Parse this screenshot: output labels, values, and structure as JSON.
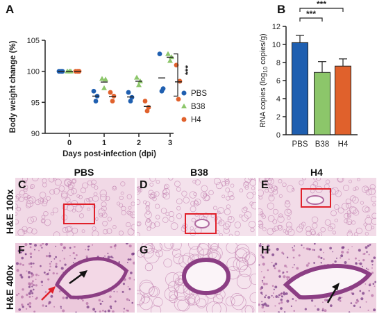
{
  "panels": {
    "a": "A",
    "b": "B",
    "c": "C",
    "d": "D",
    "e": "E",
    "f": "F",
    "g": "G",
    "h": "H"
  },
  "columns": [
    "PBS",
    "B38",
    "H4"
  ],
  "rows": [
    "H&E 100x",
    "H&E 400x"
  ],
  "colors": {
    "PBS": "#1f5fb0",
    "B38": "#8cc66a",
    "H4": "#e0612c",
    "box": "#e0202a",
    "arrow_black": "#111111",
    "arrow_red": "#e0202a",
    "tissue_bg": "#f3dde8",
    "tissue": "#c58ab5"
  },
  "chart_data": [
    {
      "type": "scatter",
      "panel": "A",
      "xlabel": "Days post-infection (dpi)",
      "ylabel": "Body weight change (%)",
      "x_ticks": [
        "0",
        "1",
        "2",
        "3"
      ],
      "y_ticks": [
        "90",
        "95",
        "100",
        "105"
      ],
      "ylim": [
        90,
        105
      ],
      "significance": "***",
      "legend": [
        "PBS",
        "B38",
        "H4"
      ],
      "legend_position": "right",
      "series": [
        {
          "name": "PBS",
          "marker": "circle",
          "points": [
            {
              "day": 0,
              "values": [
                100,
                100,
                100
              ]
            },
            {
              "day": 1,
              "values": [
                96.8,
                96.0,
                95.2
              ]
            },
            {
              "day": 2,
              "values": [
                96.6,
                95.8,
                95.2
              ]
            },
            {
              "day": 3,
              "values": [
                102.8,
                97.2,
                96.8
              ]
            }
          ]
        },
        {
          "name": "B38",
          "marker": "triangle",
          "points": [
            {
              "day": 0,
              "values": [
                100,
                100,
                100
              ]
            },
            {
              "day": 1,
              "values": [
                98.8,
                98.7,
                97.3
              ]
            },
            {
              "day": 2,
              "values": [
                99.0,
                98.4,
                97.8
              ]
            },
            {
              "day": 3,
              "values": [
                102.8,
                102.3,
                101.7
              ]
            }
          ]
        },
        {
          "name": "H4",
          "marker": "circle",
          "points": [
            {
              "day": 0,
              "values": [
                100,
                100,
                100
              ]
            },
            {
              "day": 1,
              "values": [
                96.6,
                96.0,
                95.2
              ]
            },
            {
              "day": 2,
              "values": [
                95.2,
                94.2,
                93.6
              ]
            },
            {
              "day": 3,
              "values": [
                101.0,
                98.4,
                95.5
              ]
            }
          ]
        }
      ]
    },
    {
      "type": "bar",
      "panel": "B",
      "categories": [
        "PBS",
        "B38",
        "H4"
      ],
      "values": [
        10.2,
        6.9,
        7.6
      ],
      "errors": [
        0.8,
        1.2,
        0.8
      ],
      "ylabel": "RNA copies (log10 copies/g)",
      "ylabel_main": "RNA copies (log",
      "ylabel_sub": "10",
      "ylabel_tail": " copies/g)",
      "y_ticks": [
        "0",
        "2",
        "4",
        "6",
        "8",
        "10",
        "12"
      ],
      "ylim": [
        0,
        12
      ],
      "significance": [
        {
          "from": "PBS",
          "to": "B38",
          "label": "***"
        },
        {
          "from": "PBS",
          "to": "H4",
          "label": "***"
        }
      ]
    }
  ]
}
